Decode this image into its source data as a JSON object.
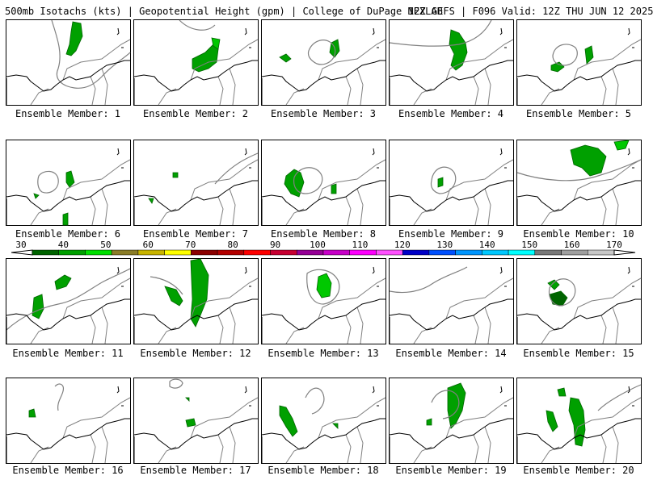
{
  "header": {
    "product": "500mb Isotachs (kts) | Geopotential Height (gpm) | College of DuPage NEXLAB",
    "run": "12Z GEFS | F096 Valid: 12Z THU JUN 12 2025"
  },
  "panel_label_prefix": "Ensemble Member: ",
  "panels": [
    {
      "member": "1",
      "label": "Ensemble Member: 1"
    },
    {
      "member": "2",
      "label": "Ensemble Member: 2"
    },
    {
      "member": "3",
      "label": "Ensemble Member: 3"
    },
    {
      "member": "4",
      "label": "Ensemble Member: 4"
    },
    {
      "member": "5",
      "label": "Ensemble Member: 5"
    },
    {
      "member": "6",
      "label": "Ensemble Member: 6"
    },
    {
      "member": "7",
      "label": "Ensemble Member: 7"
    },
    {
      "member": "8",
      "label": "Ensemble Member: 8"
    },
    {
      "member": "9",
      "label": "Ensemble Member: 9"
    },
    {
      "member": "10",
      "label": "Ensemble Member: 10"
    },
    {
      "member": "11",
      "label": "Ensemble Member: 11"
    },
    {
      "member": "12",
      "label": "Ensemble Member: 12"
    },
    {
      "member": "13",
      "label": "Ensemble Member: 13"
    },
    {
      "member": "14",
      "label": "Ensemble Member: 14"
    },
    {
      "member": "15",
      "label": "Ensemble Member: 15"
    },
    {
      "member": "16",
      "label": "Ensemble Member: 16"
    },
    {
      "member": "17",
      "label": "Ensemble Member: 17"
    },
    {
      "member": "18",
      "label": "Ensemble Member: 18"
    },
    {
      "member": "19",
      "label": "Ensemble Member: 19"
    },
    {
      "member": "20",
      "label": "Ensemble Member: 20"
    }
  ],
  "colorbar": {
    "labels": [
      "30",
      "40",
      "50",
      "60",
      "70",
      "80",
      "90",
      "100",
      "110",
      "120",
      "130",
      "140",
      "150",
      "160",
      "170"
    ],
    "colors": [
      "#006400",
      "#00a000",
      "#00e000",
      "#8b7d28",
      "#c8b400",
      "#ffff00",
      "#8b0000",
      "#b40000",
      "#ff0000",
      "#c80032",
      "#960096",
      "#c800c8",
      "#ff00ff",
      "#ff50ff",
      "#0000c8",
      "#0050ff",
      "#0096ff",
      "#00c8ff",
      "#00ffff",
      "#787878",
      "#a0a0a0",
      "#c8c8c8"
    ],
    "level_min": 30,
    "level_max": 170
  },
  "colors": {
    "isotach_dark": "#006400",
    "isotach_mid": "#00a000",
    "isotach_light": "#00c800",
    "height_contour": "#808080",
    "coastline": "#000000"
  }
}
